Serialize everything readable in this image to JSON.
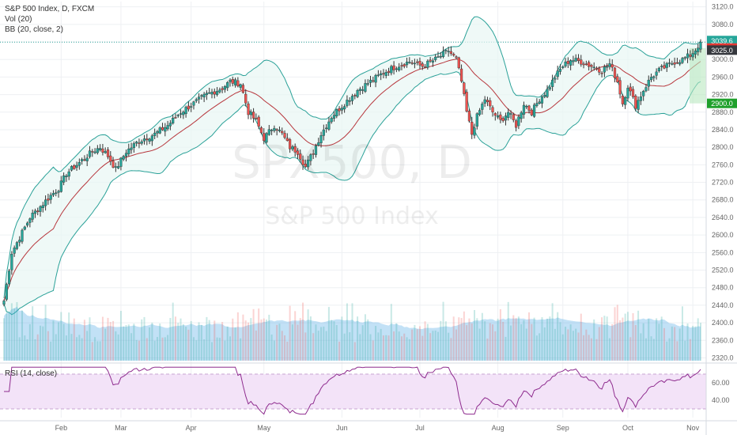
{
  "header": {
    "title_line": "S&P 500 Index, D, FXCM",
    "vol_label": "Vol (20)",
    "bb_label": "BB (20, close, 2)",
    "rsi_label": "RSI (14, close)"
  },
  "watermark": {
    "symbol": "SPX500, D",
    "name": "S&P 500 Index"
  },
  "colors": {
    "up": "#26a69a",
    "down": "#ef5350",
    "basis": "#b7363c",
    "bb_band": "#2aa198",
    "bb_fill": "#e8f6f3",
    "volume": "#4fa8e6",
    "rsi_line": "#8e2b8e",
    "rsi_bg": "#f3e3f8",
    "last_price_tag": "#36383e",
    "red_tag": "#e53935",
    "green_tag": "#1fa02c"
  },
  "chart_data": [
    {
      "type": "candlestick",
      "title": "S&P 500 Index, D, FXCM",
      "x_tick_labels": [
        "Feb",
        "Mar",
        "Apr",
        "May",
        "Jun",
        "Jul",
        "Aug",
        "Sep",
        "Oct",
        "Nov"
      ],
      "y_tick_labels": [
        "3120.0",
        "3080.0",
        "3040.0",
        "3000.0",
        "2960.0",
        "2920.0",
        "2880.0",
        "2840.0",
        "2800.0",
        "2760.0",
        "2720.0",
        "2680.0",
        "2640.0",
        "2600.0",
        "2560.0",
        "2520.0",
        "2480.0",
        "2440.0",
        "2400.0",
        "2360.0",
        "2320.0"
      ],
      "ylim": [
        2310,
        3132
      ],
      "price_tags": [
        {
          "label": "3039.6",
          "value": 3039.6,
          "kind": "last"
        },
        {
          "label": "3026.0",
          "value": 3026.0,
          "kind": "red"
        },
        {
          "label": "3025.0",
          "value": 3025.0,
          "kind": "dark"
        },
        {
          "label": "2900.0",
          "value": 2900.0,
          "kind": "green"
        }
      ],
      "shaded_range": [
        2900.0,
        3026.0
      ],
      "close_anchors": [
        [
          0,
          2450
        ],
        [
          3,
          2560
        ],
        [
          10,
          2640
        ],
        [
          18,
          2690
        ],
        [
          21,
          2706
        ],
        [
          24,
          2740
        ],
        [
          28,
          2760
        ],
        [
          34,
          2790
        ],
        [
          37,
          2800
        ],
        [
          40,
          2780
        ],
        [
          43,
          2750
        ],
        [
          47,
          2790
        ],
        [
          51,
          2810
        ],
        [
          54,
          2820
        ],
        [
          58,
          2830
        ],
        [
          63,
          2850
        ],
        [
          68,
          2880
        ],
        [
          73,
          2900
        ],
        [
          78,
          2920
        ],
        [
          84,
          2935
        ],
        [
          87,
          2950
        ],
        [
          91,
          2945
        ],
        [
          94,
          2880
        ],
        [
          97,
          2860
        ],
        [
          100,
          2820
        ],
        [
          104,
          2850
        ],
        [
          107,
          2830
        ],
        [
          110,
          2800
        ],
        [
          113,
          2790
        ],
        [
          116,
          2755
        ],
        [
          119,
          2790
        ],
        [
          122,
          2830
        ],
        [
          126,
          2870
        ],
        [
          131,
          2900
        ],
        [
          136,
          2930
        ],
        [
          141,
          2950
        ],
        [
          146,
          2970
        ],
        [
          151,
          2985
        ],
        [
          156,
          2995
        ],
        [
          161,
          2985
        ],
        [
          166,
          3000
        ],
        [
          171,
          3020
        ],
        [
          174,
          3000
        ],
        [
          176,
          2950
        ],
        [
          178,
          2880
        ],
        [
          180,
          2830
        ],
        [
          182,
          2870
        ],
        [
          185,
          2910
        ],
        [
          188,
          2880
        ],
        [
          191,
          2860
        ],
        [
          194,
          2880
        ],
        [
          197,
          2850
        ],
        [
          200,
          2900
        ],
        [
          203,
          2880
        ],
        [
          206,
          2910
        ],
        [
          209,
          2930
        ],
        [
          212,
          2960
        ],
        [
          215,
          2985
        ],
        [
          218,
          3000
        ],
        [
          222,
          2995
        ],
        [
          226,
          2985
        ],
        [
          230,
          2975
        ],
        [
          233,
          2990
        ],
        [
          236,
          2950
        ],
        [
          238,
          2900
        ],
        [
          240,
          2940
        ],
        [
          243,
          2895
        ],
        [
          246,
          2930
        ],
        [
          249,
          2960
        ],
        [
          252,
          2975
        ],
        [
          255,
          2985
        ],
        [
          258,
          2995
        ],
        [
          261,
          3000
        ],
        [
          264,
          3010
        ],
        [
          266,
          3022
        ],
        [
          268,
          3039.6
        ]
      ],
      "n_days": 269,
      "x_month_day_index": [
        22,
        45,
        72,
        100,
        130,
        160,
        190,
        215,
        240,
        265
      ]
    },
    {
      "type": "bar",
      "title": "Vol (20)",
      "note": "volume histogram with 20-period volume moving average area"
    },
    {
      "type": "line",
      "title": "RSI (14, close)",
      "y_tick_labels": [
        "60.00",
        "40.00"
      ],
      "ylim": [
        20,
        80
      ],
      "band": [
        30,
        70
      ]
    }
  ]
}
